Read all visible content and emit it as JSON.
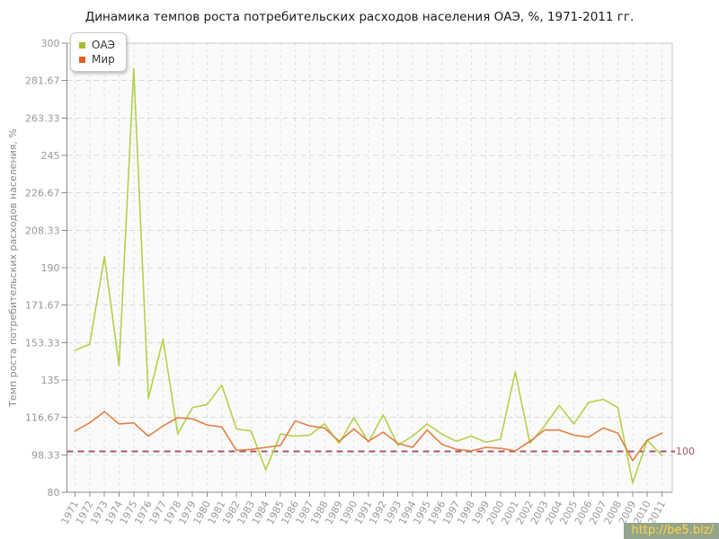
{
  "title": "Динамика темпов роста потребительских расходов населения ОАЭ, %, 1971-2011 гг.",
  "watermark": "http://be5.biz/",
  "reference_line": {
    "value": 100,
    "label": "100",
    "color": "#a85868"
  },
  "axis": {
    "tick_label_color": "#999999",
    "axis_color": "#8c8c8c"
  },
  "plot": {
    "background": "#fafafa",
    "grid_h_color": "#d9d9d9",
    "grid_v_color": "#e0e0e0",
    "border_color": "#c8c8c8"
  },
  "chart_data": {
    "type": "line",
    "title": "Динамика темпов роста потребительских расходов населения ОАЭ, %, 1971-2011 гг.",
    "xlabel": "",
    "ylabel": "Темп роста потребительских расходов населения, %",
    "grid": true,
    "legend_position": "top-left",
    "ylim": [
      80,
      300
    ],
    "yticks": [
      "80",
      "98.33",
      "116.67",
      "135",
      "153.33",
      "171.67",
      "190",
      "208.33",
      "226.67",
      "245",
      "263.33",
      "281.67",
      "300"
    ],
    "x": [
      1971,
      1972,
      1973,
      1974,
      1975,
      1976,
      1977,
      1978,
      1979,
      1980,
      1981,
      1982,
      1983,
      1984,
      1985,
      1986,
      1987,
      1988,
      1989,
      1990,
      1991,
      1992,
      1993,
      1994,
      1995,
      1996,
      1997,
      1998,
      1999,
      2000,
      2001,
      2002,
      2003,
      2004,
      2005,
      2006,
      2007,
      2008,
      2009,
      2010,
      2011
    ],
    "series": [
      {
        "name": "ОАЭ",
        "color": "#b2d14b",
        "swatch_color": "#a3c030",
        "values": [
          149.5,
          152.5,
          195.5,
          142,
          287.5,
          126,
          155,
          108.5,
          121.5,
          123,
          132.5,
          111,
          110,
          91,
          108.5,
          107.5,
          108,
          113.5,
          104,
          116.5,
          104.5,
          118,
          103,
          107.5,
          113.5,
          108.5,
          105,
          107.5,
          104.5,
          106,
          139,
          104,
          112.5,
          122.5,
          113.5,
          124,
          125.5,
          121.5,
          84.5,
          105.5,
          98
        ]
      },
      {
        "name": "Мир",
        "color": "#e57e41",
        "swatch_color": "#df5f1e",
        "values": [
          110,
          114,
          119.5,
          113.5,
          114,
          107.5,
          112.5,
          116.5,
          116,
          113,
          112,
          100.5,
          101,
          102,
          103,
          115,
          112.5,
          111.5,
          105,
          111,
          105,
          109.5,
          104,
          102,
          110.5,
          103.5,
          101,
          100.3,
          102,
          101.5,
          100.3,
          105,
          110.5,
          110.5,
          108,
          107,
          111.5,
          109,
          95.5,
          105.5,
          109
        ]
      }
    ]
  }
}
